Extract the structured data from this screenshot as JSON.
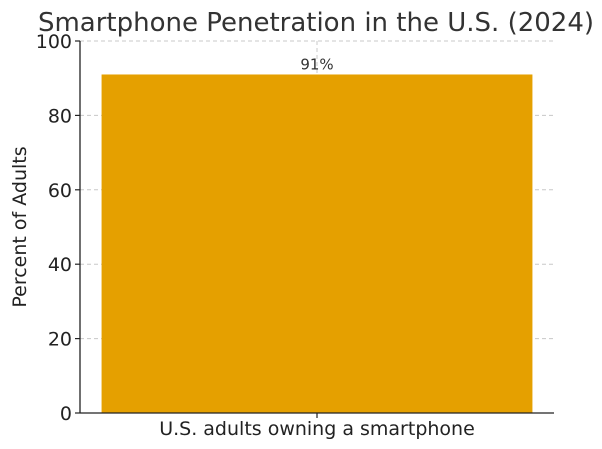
{
  "chart_data": {
    "type": "bar",
    "title": "Smartphone Penetration in the U.S. (2024)",
    "xlabel": "",
    "ylabel": "Percent of Adults",
    "categories": [
      "U.S. adults owning a smartphone"
    ],
    "values": [
      91
    ],
    "data_labels": [
      "91%"
    ],
    "ylim": [
      0,
      100
    ],
    "yticks": [
      0,
      20,
      40,
      60,
      80,
      100
    ],
    "grid": true,
    "bar_color": "#E5A000"
  }
}
